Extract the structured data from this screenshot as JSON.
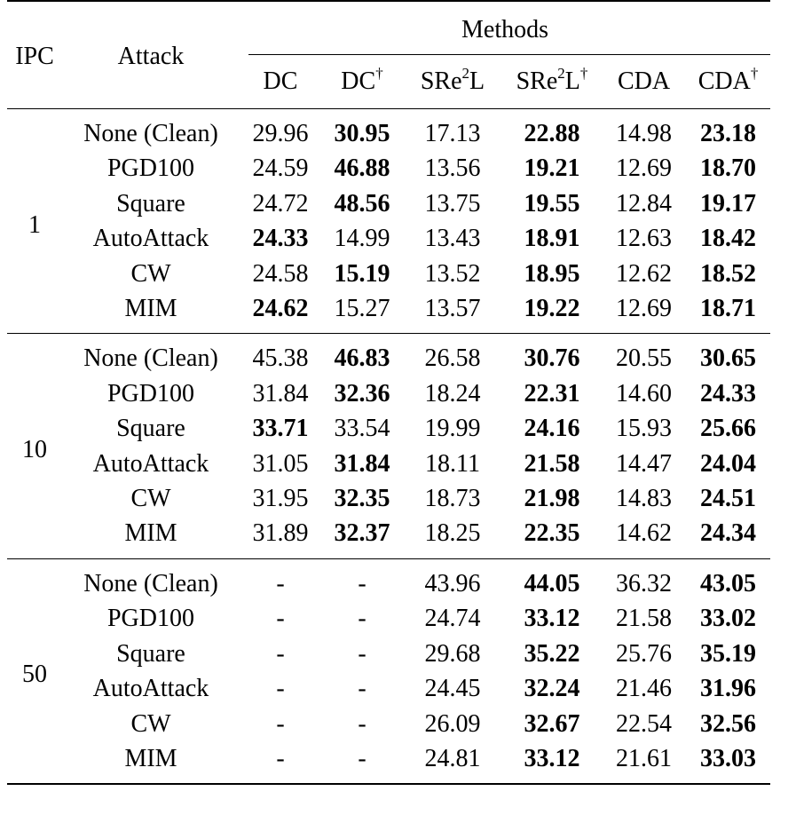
{
  "header": {
    "ipc": "IPC",
    "attack": "Attack",
    "methods": "Methods",
    "columns": [
      {
        "base": "DC",
        "sup_mid": "",
        "tail": "",
        "dagger": ""
      },
      {
        "base": "DC",
        "sup_mid": "",
        "tail": "",
        "dagger": "†"
      },
      {
        "base": "SRe",
        "sup_mid": "2",
        "tail": "L",
        "dagger": ""
      },
      {
        "base": "SRe",
        "sup_mid": "2",
        "tail": "L",
        "dagger": "†"
      },
      {
        "base": "CDA",
        "sup_mid": "",
        "tail": "",
        "dagger": ""
      },
      {
        "base": "CDA",
        "sup_mid": "",
        "tail": "",
        "dagger": "†"
      }
    ]
  },
  "groups": [
    {
      "ipc": "1",
      "rows": [
        {
          "attack": "None (Clean)",
          "values": [
            "29.96",
            "30.95",
            "17.13",
            "22.88",
            "14.98",
            "23.18"
          ],
          "bold": [
            false,
            true,
            false,
            true,
            false,
            true
          ]
        },
        {
          "attack": "PGD100",
          "values": [
            "24.59",
            "46.88",
            "13.56",
            "19.21",
            "12.69",
            "18.70"
          ],
          "bold": [
            false,
            true,
            false,
            true,
            false,
            true
          ]
        },
        {
          "attack": "Square",
          "values": [
            "24.72",
            "48.56",
            "13.75",
            "19.55",
            "12.84",
            "19.17"
          ],
          "bold": [
            false,
            true,
            false,
            true,
            false,
            true
          ]
        },
        {
          "attack": "AutoAttack",
          "values": [
            "24.33",
            "14.99",
            "13.43",
            "18.91",
            "12.63",
            "18.42"
          ],
          "bold": [
            true,
            false,
            false,
            true,
            false,
            true
          ]
        },
        {
          "attack": "CW",
          "values": [
            "24.58",
            "15.19",
            "13.52",
            "18.95",
            "12.62",
            "18.52"
          ],
          "bold": [
            false,
            true,
            false,
            true,
            false,
            true
          ]
        },
        {
          "attack": "MIM",
          "values": [
            "24.62",
            "15.27",
            "13.57",
            "19.22",
            "12.69",
            "18.71"
          ],
          "bold": [
            true,
            false,
            false,
            true,
            false,
            true
          ]
        }
      ]
    },
    {
      "ipc": "10",
      "rows": [
        {
          "attack": "None (Clean)",
          "values": [
            "45.38",
            "46.83",
            "26.58",
            "30.76",
            "20.55",
            "30.65"
          ],
          "bold": [
            false,
            true,
            false,
            true,
            false,
            true
          ]
        },
        {
          "attack": "PGD100",
          "values": [
            "31.84",
            "32.36",
            "18.24",
            "22.31",
            "14.60",
            "24.33"
          ],
          "bold": [
            false,
            true,
            false,
            true,
            false,
            true
          ]
        },
        {
          "attack": "Square",
          "values": [
            "33.71",
            "33.54",
            "19.99",
            "24.16",
            "15.93",
            "25.66"
          ],
          "bold": [
            true,
            false,
            false,
            true,
            false,
            true
          ]
        },
        {
          "attack": "AutoAttack",
          "values": [
            "31.05",
            "31.84",
            "18.11",
            "21.58",
            "14.47",
            "24.04"
          ],
          "bold": [
            false,
            true,
            false,
            true,
            false,
            true
          ]
        },
        {
          "attack": "CW",
          "values": [
            "31.95",
            "32.35",
            "18.73",
            "21.98",
            "14.83",
            "24.51"
          ],
          "bold": [
            false,
            true,
            false,
            true,
            false,
            true
          ]
        },
        {
          "attack": "MIM",
          "values": [
            "31.89",
            "32.37",
            "18.25",
            "22.35",
            "14.62",
            "24.34"
          ],
          "bold": [
            false,
            true,
            false,
            true,
            false,
            true
          ]
        }
      ]
    },
    {
      "ipc": "50",
      "rows": [
        {
          "attack": "None (Clean)",
          "values": [
            "-",
            "-",
            "43.96",
            "44.05",
            "36.32",
            "43.05"
          ],
          "bold": [
            false,
            false,
            false,
            true,
            false,
            true
          ]
        },
        {
          "attack": "PGD100",
          "values": [
            "-",
            "-",
            "24.74",
            "33.12",
            "21.58",
            "33.02"
          ],
          "bold": [
            false,
            false,
            false,
            true,
            false,
            true
          ]
        },
        {
          "attack": "Square",
          "values": [
            "-",
            "-",
            "29.68",
            "35.22",
            "25.76",
            "35.19"
          ],
          "bold": [
            false,
            false,
            false,
            true,
            false,
            true
          ]
        },
        {
          "attack": "AutoAttack",
          "values": [
            "-",
            "-",
            "24.45",
            "32.24",
            "21.46",
            "31.96"
          ],
          "bold": [
            false,
            false,
            false,
            true,
            false,
            true
          ]
        },
        {
          "attack": "CW",
          "values": [
            "-",
            "-",
            "26.09",
            "32.67",
            "22.54",
            "32.56"
          ],
          "bold": [
            false,
            false,
            false,
            true,
            false,
            true
          ]
        },
        {
          "attack": "MIM",
          "values": [
            "-",
            "-",
            "24.81",
            "33.12",
            "21.61",
            "33.03"
          ],
          "bold": [
            false,
            false,
            false,
            true,
            false,
            true
          ]
        }
      ]
    }
  ]
}
